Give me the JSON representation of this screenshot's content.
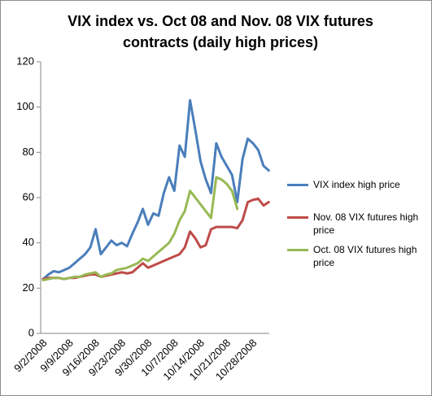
{
  "chart_data": {
    "type": "line",
    "title": "VIX index vs. Oct 08 and Nov. 08 VIX futures contracts (daily high prices)",
    "categories": [
      "9/2/2008",
      null,
      null,
      null,
      null,
      "9/9/2008",
      null,
      null,
      null,
      null,
      "9/16/2008",
      null,
      null,
      null,
      null,
      "9/23/2008",
      null,
      null,
      null,
      null,
      "9/30/2008",
      null,
      null,
      null,
      null,
      "10/7/2008",
      null,
      null,
      null,
      null,
      "10/14/2008",
      null,
      null,
      null,
      null,
      "10/21/2008",
      null,
      null,
      null,
      null,
      "10/28/2008",
      null,
      null,
      null
    ],
    "series": [
      {
        "name": "VIX index high price",
        "color": "#4a7ebb",
        "values": [
          24,
          26,
          27.5,
          27,
          28,
          29,
          31,
          33,
          35,
          38,
          46,
          35,
          38,
          41,
          39,
          40,
          38.5,
          44,
          49,
          55,
          48,
          53,
          52,
          62,
          69,
          63,
          83,
          78,
          103,
          90,
          76,
          68,
          62,
          84,
          78,
          74,
          70,
          58,
          77,
          86,
          84,
          81,
          74,
          72
        ]
      },
      {
        "name": "Nov. 08 VIX futures high price",
        "color": "#be4b48",
        "values": [
          24,
          24.5,
          24.5,
          24.5,
          24,
          24.5,
          24.5,
          25,
          25.5,
          26,
          26,
          25,
          25.5,
          26,
          26.5,
          27,
          26.5,
          27,
          29,
          31,
          29,
          30,
          31,
          32,
          33,
          34,
          35,
          38,
          45,
          42,
          38,
          39,
          46,
          47,
          47,
          47,
          47,
          46.5,
          50,
          58,
          59,
          59.5,
          56.5,
          58
        ]
      },
      {
        "name": "Oct. 08 VIX futures high price",
        "color": "#98b954",
        "values": [
          23.5,
          24,
          24.5,
          24.5,
          24,
          24.5,
          25,
          25,
          26,
          26.5,
          27,
          25,
          26,
          26.5,
          28,
          28.5,
          29,
          30,
          31,
          33,
          32,
          34,
          36,
          38,
          40,
          44,
          50,
          54,
          63,
          60,
          57,
          54,
          51,
          69,
          68,
          66,
          63,
          55,
          null,
          null,
          null,
          null,
          null,
          null
        ]
      }
    ],
    "ylim": [
      0,
      120
    ],
    "yticks": [
      0,
      20,
      40,
      60,
      80,
      100,
      120
    ],
    "grid": false,
    "legend": "right"
  }
}
